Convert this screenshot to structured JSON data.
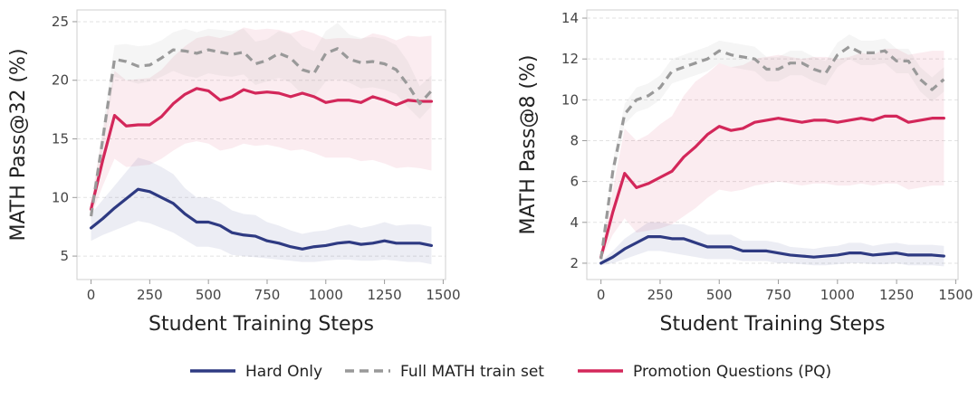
{
  "colors": {
    "hard_only": "#2e3a82",
    "full_math": "#999999",
    "promotion": "#d3275a"
  },
  "legend": [
    {
      "series": "hard_only",
      "label": "Hard Only",
      "dashed": false
    },
    {
      "series": "full_math",
      "label": "Full MATH train set",
      "dashed": true
    },
    {
      "series": "promotion",
      "label": "Promotion Questions (PQ)",
      "dashed": false
    }
  ],
  "chart_data": [
    {
      "type": "line",
      "xlabel": "Student Training Steps",
      "ylabel": "MATH Pass@32 (%)",
      "xlim": [
        -60,
        1510
      ],
      "ylim": [
        3,
        26
      ],
      "xticks": [
        0,
        250,
        500,
        750,
        1000,
        1250,
        1500
      ],
      "yticks": [
        5,
        10,
        15,
        20,
        25
      ],
      "grid": true,
      "x": [
        0,
        50,
        100,
        150,
        200,
        250,
        300,
        350,
        400,
        450,
        500,
        550,
        600,
        650,
        700,
        750,
        800,
        850,
        900,
        950,
        1000,
        1050,
        1100,
        1150,
        1200,
        1250,
        1300,
        1350,
        1400,
        1450
      ],
      "series": [
        {
          "name": "Hard Only",
          "key": "hard_only",
          "values": [
            7.4,
            8.2,
            9.1,
            9.9,
            10.7,
            10.5,
            10.0,
            9.5,
            8.6,
            7.9,
            7.9,
            7.6,
            7.0,
            6.8,
            6.7,
            6.3,
            6.1,
            5.8,
            5.6,
            5.8,
            5.9,
            6.1,
            6.2,
            6.0,
            6.1,
            6.3,
            6.1,
            6.1,
            6.1,
            5.9
          ],
          "lower": [
            6.3,
            6.8,
            7.2,
            7.6,
            8.0,
            7.8,
            7.4,
            7.0,
            6.4,
            5.8,
            5.8,
            5.6,
            5.1,
            5.0,
            4.9,
            4.8,
            4.7,
            4.6,
            4.5,
            4.5,
            4.6,
            4.7,
            4.7,
            4.6,
            4.6,
            4.7,
            4.6,
            4.5,
            4.5,
            4.3
          ],
          "upper": [
            8.6,
            9.8,
            11.0,
            12.2,
            13.4,
            13.1,
            12.6,
            12.0,
            10.8,
            10.0,
            10.0,
            9.6,
            8.9,
            8.6,
            8.5,
            7.9,
            7.6,
            7.2,
            6.9,
            7.1,
            7.2,
            7.5,
            7.7,
            7.4,
            7.6,
            7.9,
            7.6,
            7.7,
            7.7,
            7.5
          ]
        },
        {
          "name": "Full MATH train set",
          "key": "full_math",
          "values": [
            8.4,
            15.0,
            21.8,
            21.6,
            21.2,
            21.3,
            21.9,
            22.6,
            22.5,
            22.3,
            22.6,
            22.4,
            22.2,
            22.4,
            21.4,
            21.7,
            22.3,
            21.9,
            20.9,
            20.6,
            22.3,
            22.7,
            21.8,
            21.5,
            21.6,
            21.4,
            20.9,
            19.6,
            18.0,
            19.1
          ],
          "lower": [
            8.0,
            14.0,
            20.3,
            20.0,
            19.7,
            19.9,
            20.3,
            20.8,
            20.4,
            20.2,
            20.6,
            20.4,
            20.3,
            20.5,
            19.6,
            19.9,
            20.2,
            19.8,
            18.8,
            18.6,
            19.9,
            20.1,
            19.8,
            19.3,
            19.4,
            19.2,
            18.8,
            17.7,
            16.7,
            17.8
          ],
          "upper": [
            8.8,
            16.0,
            23.0,
            23.1,
            22.9,
            23.0,
            23.4,
            24.1,
            24.4,
            24.1,
            24.4,
            24.3,
            24.2,
            24.4,
            23.3,
            23.5,
            24.2,
            23.9,
            22.9,
            22.5,
            24.2,
            24.9,
            23.9,
            23.6,
            23.7,
            23.5,
            23.0,
            21.6,
            19.5,
            20.4
          ]
        },
        {
          "name": "Promotion Questions (PQ)",
          "key": "promotion",
          "values": [
            9.0,
            13.2,
            17.0,
            16.1,
            16.2,
            16.2,
            16.9,
            18.0,
            18.8,
            19.3,
            19.1,
            18.3,
            18.6,
            19.2,
            18.9,
            19.0,
            18.9,
            18.6,
            18.9,
            18.6,
            18.1,
            18.3,
            18.3,
            18.1,
            18.6,
            18.3,
            17.9,
            18.3,
            18.2,
            18.2
          ],
          "lower": [
            8.4,
            11.0,
            13.3,
            12.6,
            12.7,
            12.8,
            13.3,
            14.0,
            14.6,
            14.8,
            14.6,
            14.0,
            14.2,
            14.6,
            14.4,
            14.5,
            14.3,
            14.0,
            14.1,
            13.8,
            13.4,
            13.4,
            13.4,
            13.1,
            13.2,
            12.9,
            12.5,
            12.6,
            12.5,
            12.3
          ],
          "upper": [
            9.6,
            15.6,
            20.8,
            20.0,
            20.1,
            20.2,
            20.9,
            22.0,
            22.9,
            23.6,
            23.8,
            23.6,
            23.9,
            24.5,
            24.3,
            24.4,
            24.3,
            24.0,
            24.3,
            24.0,
            23.5,
            23.6,
            23.6,
            23.5,
            24.0,
            23.8,
            23.4,
            23.8,
            23.7,
            23.8
          ]
        }
      ]
    },
    {
      "type": "line",
      "xlabel": "Student Training Steps",
      "ylabel": "MATH Pass@8 (%)",
      "xlim": [
        -60,
        1510
      ],
      "ylim": [
        1.2,
        14.4
      ],
      "xticks": [
        0,
        250,
        500,
        750,
        1000,
        1250,
        1500
      ],
      "yticks": [
        2,
        4,
        6,
        8,
        10,
        12,
        14
      ],
      "grid": true,
      "x": [
        0,
        50,
        100,
        150,
        200,
        250,
        300,
        350,
        400,
        450,
        500,
        550,
        600,
        650,
        700,
        750,
        800,
        850,
        900,
        950,
        1000,
        1050,
        1100,
        1150,
        1200,
        1250,
        1300,
        1350,
        1400,
        1450
      ],
      "series": [
        {
          "name": "Hard Only",
          "key": "hard_only",
          "values": [
            2.0,
            2.3,
            2.7,
            3.0,
            3.3,
            3.3,
            3.2,
            3.2,
            3.0,
            2.8,
            2.8,
            2.8,
            2.6,
            2.6,
            2.6,
            2.5,
            2.4,
            2.35,
            2.3,
            2.35,
            2.4,
            2.5,
            2.5,
            2.4,
            2.45,
            2.5,
            2.4,
            2.4,
            2.4,
            2.35
          ],
          "lower": [
            1.9,
            2.0,
            2.2,
            2.4,
            2.6,
            2.6,
            2.5,
            2.4,
            2.3,
            2.2,
            2.2,
            2.2,
            2.1,
            2.1,
            2.1,
            2.0,
            2.0,
            1.95,
            1.9,
            1.9,
            1.95,
            2.0,
            2.0,
            1.95,
            1.95,
            2.0,
            1.9,
            1.9,
            1.9,
            1.85
          ],
          "upper": [
            2.1,
            2.6,
            3.2,
            3.6,
            4.0,
            4.0,
            3.9,
            3.9,
            3.7,
            3.4,
            3.4,
            3.4,
            3.1,
            3.1,
            3.1,
            3.0,
            2.8,
            2.75,
            2.7,
            2.8,
            2.85,
            3.0,
            3.0,
            2.85,
            2.95,
            3.0,
            2.9,
            2.9,
            2.9,
            2.85
          ]
        },
        {
          "name": "Full MATH train set",
          "key": "full_math",
          "values": [
            2.2,
            6.5,
            9.3,
            10.0,
            10.2,
            10.6,
            11.4,
            11.6,
            11.8,
            12.0,
            12.4,
            12.2,
            12.1,
            12.0,
            11.5,
            11.5,
            11.8,
            11.8,
            11.5,
            11.3,
            12.2,
            12.6,
            12.3,
            12.3,
            12.4,
            11.9,
            11.9,
            11.0,
            10.5,
            11.0
          ],
          "lower": [
            2.1,
            6.0,
            8.8,
            9.4,
            9.6,
            10.0,
            10.8,
            11.0,
            11.2,
            11.4,
            11.8,
            11.6,
            11.5,
            11.4,
            10.9,
            10.9,
            11.2,
            11.2,
            10.9,
            10.7,
            11.6,
            12.0,
            11.7,
            11.7,
            11.8,
            11.3,
            11.3,
            10.4,
            9.9,
            10.4
          ],
          "upper": [
            2.3,
            7.0,
            9.8,
            10.6,
            10.8,
            11.2,
            12.0,
            12.2,
            12.4,
            12.6,
            12.9,
            12.8,
            12.7,
            12.6,
            12.1,
            12.1,
            12.4,
            12.4,
            12.1,
            11.9,
            12.8,
            13.2,
            12.9,
            12.9,
            13.0,
            12.5,
            12.5,
            11.6,
            11.1,
            11.6
          ]
        },
        {
          "name": "Promotion Questions (PQ)",
          "key": "promotion",
          "values": [
            2.3,
            4.5,
            6.4,
            5.7,
            5.9,
            6.2,
            6.5,
            7.2,
            7.7,
            8.3,
            8.7,
            8.5,
            8.6,
            8.9,
            9.0,
            9.1,
            9.0,
            8.9,
            9.0,
            9.0,
            8.9,
            9.0,
            9.1,
            9.0,
            9.2,
            9.2,
            8.9,
            9.0,
            9.1,
            9.1
          ],
          "lower": [
            2.2,
            3.4,
            4.2,
            3.5,
            3.6,
            3.7,
            3.9,
            4.3,
            4.7,
            5.2,
            5.6,
            5.5,
            5.6,
            5.8,
            5.9,
            6.0,
            5.9,
            5.8,
            5.9,
            5.9,
            5.8,
            5.8,
            5.9,
            5.8,
            5.9,
            5.9,
            5.6,
            5.7,
            5.8,
            5.8
          ],
          "upper": [
            2.4,
            5.6,
            8.6,
            8.0,
            8.3,
            8.8,
            9.2,
            10.2,
            10.9,
            11.3,
            11.8,
            11.6,
            11.7,
            12.0,
            12.1,
            12.2,
            12.1,
            12.0,
            12.1,
            12.1,
            12.0,
            12.1,
            12.3,
            12.2,
            12.5,
            12.5,
            12.2,
            12.3,
            12.4,
            12.4
          ]
        }
      ]
    }
  ]
}
